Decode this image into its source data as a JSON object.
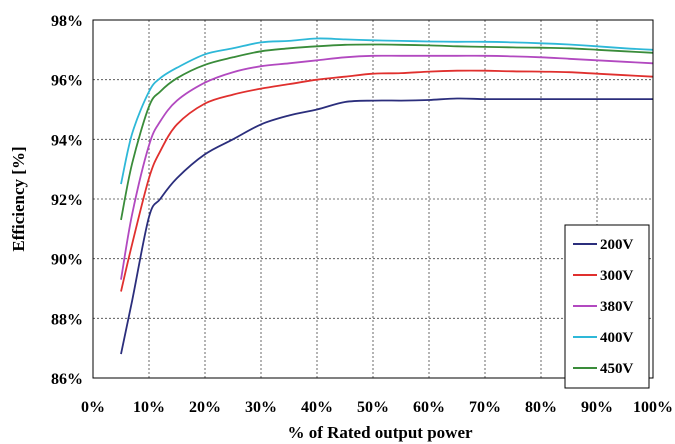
{
  "chart_data": {
    "type": "line",
    "xlabel": "% of Rated output power",
    "ylabel": "Efficiency [%]",
    "xlim": [
      0,
      100
    ],
    "ylim": [
      86,
      98
    ],
    "x_ticks": [
      "0%",
      "10%",
      "20%",
      "30%",
      "40%",
      "50%",
      "60%",
      "70%",
      "80%",
      "90%",
      "100%"
    ],
    "y_ticks": [
      "86%",
      "88%",
      "90%",
      "92%",
      "94%",
      "96%",
      "98%"
    ],
    "x_tick_values": [
      0,
      10,
      20,
      30,
      40,
      50,
      60,
      70,
      80,
      90,
      100
    ],
    "y_tick_values": [
      86,
      88,
      90,
      92,
      94,
      96,
      98
    ],
    "grid": "dashed",
    "legend_position": "bottom-right",
    "series": [
      {
        "name": "200V",
        "color": "#2b2e7c",
        "x": [
          5,
          7,
          10,
          12,
          15,
          20,
          25,
          30,
          35,
          40,
          45,
          50,
          55,
          60,
          65,
          70,
          75,
          80,
          85,
          90,
          95,
          100
        ],
        "values": [
          86.8,
          88.6,
          91.4,
          92.0,
          92.7,
          93.5,
          94.0,
          94.5,
          94.8,
          95.0,
          95.25,
          95.3,
          95.3,
          95.32,
          95.37,
          95.35,
          95.35,
          95.35,
          95.35,
          95.35,
          95.35,
          95.35
        ]
      },
      {
        "name": "300V",
        "color": "#e0302e",
        "x": [
          5,
          7,
          10,
          12,
          15,
          20,
          25,
          30,
          35,
          40,
          45,
          50,
          55,
          60,
          65,
          70,
          75,
          80,
          85,
          90,
          95,
          100
        ],
        "values": [
          88.9,
          90.5,
          92.7,
          93.6,
          94.5,
          95.2,
          95.5,
          95.7,
          95.85,
          96.0,
          96.1,
          96.2,
          96.22,
          96.27,
          96.3,
          96.3,
          96.28,
          96.27,
          96.25,
          96.2,
          96.15,
          96.1
        ]
      },
      {
        "name": "380V",
        "color": "#b249c0",
        "x": [
          5,
          7,
          10,
          12,
          15,
          20,
          25,
          30,
          35,
          40,
          45,
          50,
          55,
          60,
          65,
          70,
          75,
          80,
          85,
          90,
          95,
          100
        ],
        "values": [
          89.3,
          91.5,
          93.8,
          94.6,
          95.3,
          95.9,
          96.25,
          96.45,
          96.55,
          96.65,
          96.75,
          96.8,
          96.8,
          96.8,
          96.8,
          96.8,
          96.78,
          96.75,
          96.7,
          96.65,
          96.6,
          96.55
        ]
      },
      {
        "name": "400V",
        "color": "#2eb8d8",
        "x": [
          5,
          7,
          10,
          12,
          15,
          20,
          25,
          30,
          35,
          40,
          45,
          50,
          55,
          60,
          65,
          70,
          75,
          80,
          85,
          90,
          95,
          100
        ],
        "values": [
          92.5,
          94.2,
          95.6,
          96.05,
          96.4,
          96.85,
          97.05,
          97.25,
          97.3,
          97.38,
          97.35,
          97.32,
          97.3,
          97.28,
          97.27,
          97.27,
          97.25,
          97.22,
          97.18,
          97.12,
          97.05,
          97.0
        ]
      },
      {
        "name": "450V",
        "color": "#3a8c3a",
        "x": [
          5,
          7,
          10,
          12,
          15,
          20,
          25,
          30,
          35,
          40,
          45,
          50,
          55,
          60,
          65,
          70,
          75,
          80,
          85,
          90,
          95,
          100
        ],
        "values": [
          91.3,
          93.2,
          95.1,
          95.6,
          96.05,
          96.5,
          96.75,
          96.95,
          97.05,
          97.12,
          97.17,
          97.18,
          97.17,
          97.15,
          97.12,
          97.1,
          97.08,
          97.07,
          97.05,
          97.0,
          96.95,
          96.9
        ]
      }
    ]
  }
}
